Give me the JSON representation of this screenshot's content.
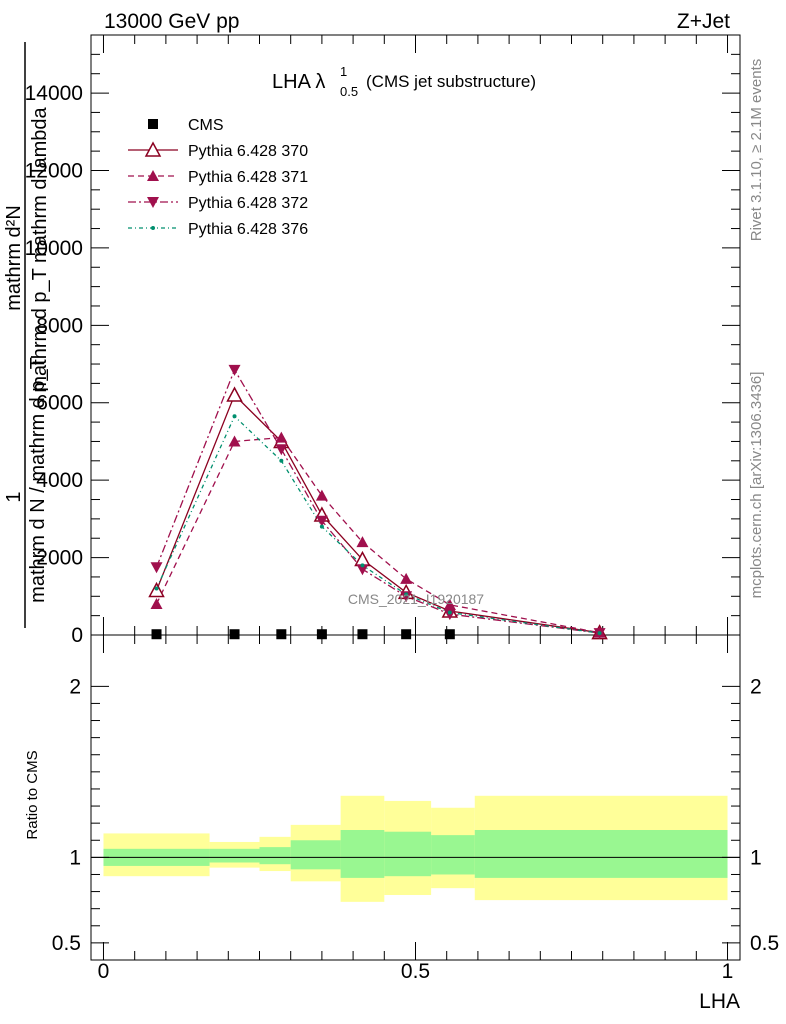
{
  "header": {
    "energy": "13000 GeV pp",
    "process": "Z+Jet"
  },
  "right_notes": {
    "rivet": "Rivet 3.1.10, ≥ 2.1M events",
    "mcplots": "mcplots.cern.ch [arXiv:1306.3436]"
  },
  "watermark": "CMS_2021_I1920187",
  "chart_data": [
    {
      "type": "line",
      "title_main": "LHA λ",
      "title_sup": "1",
      "title_sub": "0.5",
      "title_note": "(CMS jet substructure)",
      "ylabel": {
        "prefix": "1",
        "numerator": "mathrm d",
        "superscript": "2",
        "numerator2": "N",
        "denominator": "mathrm d N / mathrm d p",
        "denominator_sub": "T",
        "denominator_rest": "mathrm d p",
        "denominator_rest_sub": "T",
        "denominator_end": "mathrm d lambda"
      },
      "ylabel_lines": [
        "mathrm d²N",
        "mathrm d p_T mathrm d lambda",
        "1",
        "mathrm d N / mathrm d p_T"
      ],
      "ylim": [
        0,
        15500
      ],
      "yticks": [
        0,
        2000,
        4000,
        6000,
        8000,
        10000,
        12000,
        14000
      ],
      "ytick_labels": [
        "0",
        "2000",
        "4000",
        "6000",
        "8000",
        "10000",
        "12000",
        "14000"
      ],
      "xlim": [
        -0.02,
        1.02
      ],
      "x": [
        0.085,
        0.21,
        0.285,
        0.35,
        0.415,
        0.485,
        0.555,
        0.795
      ],
      "legend": [
        {
          "name": "CMS",
          "color": "#000000",
          "marker": "square",
          "dash": "none"
        },
        {
          "name": "Pythia 6.428 370",
          "color": "#8b0020",
          "marker": "triangle-open",
          "dash": "solid"
        },
        {
          "name": "Pythia 6.428 371",
          "color": "#a0104d",
          "marker": "triangle-filled",
          "dash": "dashed"
        },
        {
          "name": "Pythia 6.428 372",
          "color": "#a0104d",
          "marker": "triangle-down",
          "dash": "dashdot"
        },
        {
          "name": "Pythia 6.428 376",
          "color": "#008f6e",
          "marker": "dot",
          "dash": "dashdot2"
        }
      ],
      "series": [
        {
          "name": "CMS",
          "values": [
            20,
            20,
            20,
            20,
            20,
            20,
            20,
            null
          ]
        },
        {
          "name": "Pythia 6.428 370",
          "values": [
            1150,
            6200,
            5000,
            3100,
            1950,
            1100,
            620,
            60
          ]
        },
        {
          "name": "Pythia 6.428 371",
          "values": [
            800,
            5000,
            5100,
            3600,
            2400,
            1450,
            780,
            60
          ]
        },
        {
          "name": "Pythia 6.428 372",
          "values": [
            1750,
            6850,
            4800,
            2950,
            1700,
            1000,
            540,
            50
          ]
        },
        {
          "name": "Pythia 6.428 376",
          "values": [
            1200,
            5650,
            4500,
            2800,
            1800,
            1050,
            580,
            50
          ]
        }
      ]
    },
    {
      "type": "area",
      "ylabel": "Ratio to CMS",
      "xlabel": "LHA",
      "ylim": [
        0.4,
        2.3
      ],
      "yticks": [
        0.5,
        1,
        2
      ],
      "ytick_labels": [
        "0.5",
        "1",
        "2"
      ],
      "xlim": [
        -0.02,
        1.02
      ],
      "xticks": [
        0,
        0.5,
        1
      ],
      "xtick_labels": [
        "0",
        "0.5",
        "1"
      ],
      "bins": [
        0.0,
        0.17,
        0.25,
        0.3,
        0.38,
        0.45,
        0.525,
        0.595,
        1.0
      ],
      "band_inner": {
        "color": "#99f791",
        "lo": [
          0.95,
          0.97,
          0.96,
          0.93,
          0.88,
          0.89,
          0.9,
          0.88
        ],
        "hi": [
          1.05,
          1.05,
          1.06,
          1.1,
          1.16,
          1.15,
          1.13,
          1.16
        ]
      },
      "band_outer": {
        "color": "#ffff99",
        "lo": [
          0.89,
          0.94,
          0.92,
          0.86,
          0.74,
          0.78,
          0.82,
          0.75
        ],
        "hi": [
          1.14,
          1.09,
          1.12,
          1.19,
          1.36,
          1.33,
          1.29,
          1.36
        ]
      },
      "reference": 1
    }
  ]
}
